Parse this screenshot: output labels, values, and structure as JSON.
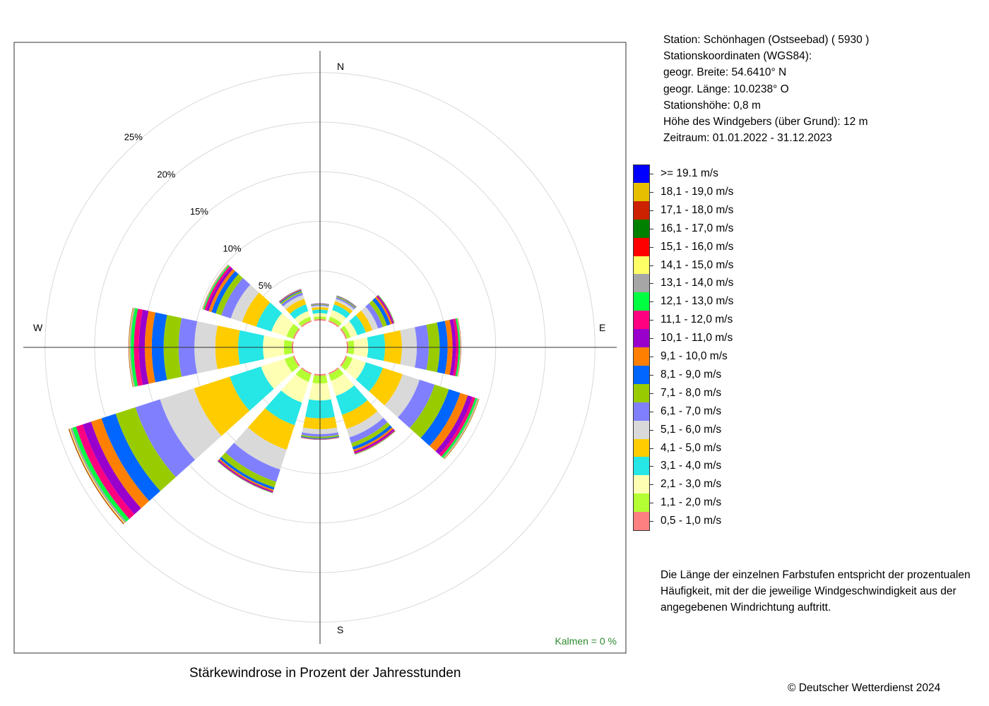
{
  "caption": "Stärkewindrose in Prozent der Jahresstunden",
  "copyright": "© Deutscher Wetterdienst  2024",
  "station_info": [
    "Station:  Schönhagen (Ostseebad)  ( 5930 )",
    "Stationskoordinaten (WGS84):",
    "geogr. Breite: 54.6410° N",
    "geogr. Länge: 10.0238° O",
    "Stationshöhe: 0,8 m",
    "Höhe des Windgebers (über Grund): 12 m",
    "Zeitraum: 01.01.2022 - 31.12.2023"
  ],
  "note": "Die Länge der einzelnen Farbstufen entspricht der prozentualen Häufigkeit, mit der die jeweilige Windgeschwindigkeit aus der angegebenen Windrichtung auftritt.",
  "calm_label": "Kalmen  =  0 %",
  "legend": [
    {
      "label": "0,5 - 1,0 m/s",
      "color": "#FF8080"
    },
    {
      "label": "1,1 - 2,0 m/s",
      "color": "#B3FF33"
    },
    {
      "label": "2,1 - 3,0 m/s",
      "color": "#FFFFB3"
    },
    {
      "label": "3,1 - 4,0 m/s",
      "color": "#26E6E6"
    },
    {
      "label": "4,1 - 5,0 m/s",
      "color": "#FFCC00"
    },
    {
      "label": "5,1 - 6,0 m/s",
      "color": "#D9D9D9"
    },
    {
      "label": "6,1 - 7,0 m/s",
      "color": "#8080FF"
    },
    {
      "label": "7,1 - 8,0 m/s",
      "color": "#99CC00"
    },
    {
      "label": "8,1 - 9,0 m/s",
      "color": "#0066FF"
    },
    {
      "label": "9,1 - 10,0 m/s",
      "color": "#FF8000"
    },
    {
      "label": "10,1 - 11,0 m/s",
      "color": "#9900CC"
    },
    {
      "label": "11,1 - 12,0 m/s",
      "color": "#FF0080"
    },
    {
      "label": "12,1 - 13,0 m/s",
      "color": "#00FF40"
    },
    {
      "label": "13,1 - 14,0 m/s",
      "color": "#A6A6A6"
    },
    {
      "label": "14,1 - 15,0 m/s",
      "color": "#FFFF66"
    },
    {
      "label": "15,1 - 16,0 m/s",
      "color": "#FF0000"
    },
    {
      "label": "16,1 - 17,0 m/s",
      "color": "#008000"
    },
    {
      "label": "17,1 - 18,0 m/s",
      "color": "#CC2200"
    },
    {
      "label": "18,1 - 19,0 m/s",
      "color": "#E6BF00"
    },
    {
      "label": ">= 19.1 m/s",
      "color": "#0000FF"
    }
  ],
  "chart_data": {
    "type": "windrose",
    "radial_unit": "%",
    "radial_max": 25,
    "rings": [
      5,
      10,
      15,
      20,
      25
    ],
    "ring_labels": [
      "5%",
      "10%",
      "15%",
      "20%",
      "25%"
    ],
    "compass": {
      "N": "N",
      "E": "E",
      "S": "S",
      "W": "W"
    },
    "directions_deg": [
      0,
      30,
      60,
      90,
      120,
      150,
      180,
      210,
      240,
      270,
      300,
      330
    ],
    "sector_width_deg": 24,
    "speed_classes": [
      "0,5 - 1,0 m/s",
      "1,1 - 2,0 m/s",
      "2,1 - 3,0 m/s",
      "3,1 - 4,0 m/s",
      "4,1 - 5,0 m/s",
      "5,1 - 6,0 m/s",
      "6,1 - 7,0 m/s",
      "7,1 - 8,0 m/s",
      "8,1 - 9,0 m/s",
      "9,1 - 10,0 m/s",
      "10,1 - 11,0 m/s",
      "11,1 - 12,0 m/s",
      "12,1 - 13,0 m/s",
      "13,1 - 14,0 m/s",
      "14,1 - 15,0 m/s",
      "15,1 - 16,0 m/s",
      "16,1 - 17,0 m/s",
      "17,1 - 18,0 m/s",
      "18,1 - 19,0 m/s",
      ">= 19.1 m/s"
    ],
    "frequencies_percent": [
      [
        0.15,
        0.25,
        0.35,
        0.35,
        0.25,
        0.15,
        0.1,
        0.06,
        0.03,
        0.02,
        0.02,
        0.01,
        0.01,
        0,
        0,
        0,
        0,
        0,
        0,
        0
      ],
      [
        0.15,
        0.4,
        0.7,
        0.6,
        0.35,
        0.25,
        0.15,
        0.08,
        0.05,
        0.03,
        0.02,
        0.02,
        0.01,
        0,
        0,
        0,
        0,
        0,
        0,
        0
      ],
      [
        0.15,
        0.4,
        0.7,
        0.9,
        0.7,
        0.6,
        0.5,
        0.45,
        0.35,
        0.2,
        0.12,
        0.08,
        0.05,
        0.02,
        0.01,
        0,
        0,
        0,
        0,
        0
      ],
      [
        0.15,
        0.6,
        1.4,
        1.7,
        1.7,
        1.5,
        1.2,
        1.1,
        0.8,
        0.5,
        0.35,
        0.25,
        0.15,
        0.05,
        0.03,
        0.02,
        0.01,
        0.01,
        0,
        0
      ],
      [
        0.15,
        0.6,
        1.4,
        1.8,
        2.1,
        1.8,
        1.6,
        1.5,
        1.2,
        0.8,
        0.5,
        0.3,
        0.2,
        0.1,
        0.05,
        0.02,
        0.02,
        0.02,
        0.01,
        0
      ],
      [
        0.15,
        0.7,
        1.6,
        2.0,
        1.5,
        0.9,
        0.6,
        0.4,
        0.3,
        0.2,
        0.15,
        0.1,
        0.05,
        0.02,
        0.01,
        0.01,
        0,
        0,
        0,
        0
      ],
      [
        0.15,
        0.8,
        1.7,
        1.8,
        1.1,
        0.5,
        0.25,
        0.15,
        0.08,
        0.04,
        0.03,
        0.02,
        0.01,
        0,
        0,
        0,
        0,
        0,
        0,
        0
      ],
      [
        0.15,
        0.8,
        2.2,
        2.4,
        2.6,
        2.1,
        1.3,
        0.6,
        0.25,
        0.15,
        0.1,
        0.06,
        0.04,
        0.02,
        0.01,
        0,
        0,
        0,
        0,
        0
      ],
      [
        0.15,
        0.9,
        2.5,
        3.3,
        3.8,
        3.6,
        2.6,
        2.1,
        1.5,
        1.1,
        0.9,
        0.7,
        0.4,
        0.2,
        0.1,
        0.05,
        0.03,
        0.02,
        0.01,
        0
      ],
      [
        0.15,
        0.8,
        2.1,
        2.5,
        2.3,
        2.1,
        1.6,
        1.5,
        1.2,
        0.7,
        0.6,
        0.5,
        0.3,
        0.12,
        0.06,
        0.03,
        0.02,
        0.01,
        0,
        0
      ],
      [
        0.15,
        0.7,
        1.6,
        1.6,
        1.5,
        1.2,
        1.0,
        0.6,
        0.45,
        0.3,
        0.25,
        0.2,
        0.12,
        0.05,
        0.03,
        0.02,
        0.01,
        0.01,
        0,
        0
      ],
      [
        0.15,
        0.4,
        0.6,
        0.7,
        0.6,
        0.4,
        0.25,
        0.15,
        0.1,
        0.06,
        0.04,
        0.03,
        0.02,
        0.01,
        0,
        0,
        0,
        0,
        0,
        0
      ]
    ]
  }
}
